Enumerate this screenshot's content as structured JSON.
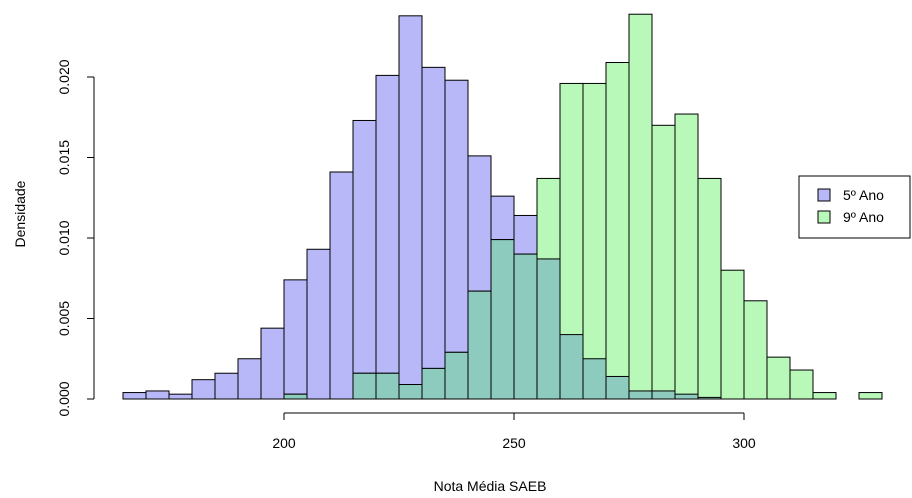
{
  "chart_data": {
    "type": "bar",
    "subtype": "overlaid-histogram",
    "xlabel": "Nota Média SAEB",
    "ylabel": "Densidade",
    "xlim": [
      163,
      332
    ],
    "ylim": [
      0,
      0.024
    ],
    "bin_width": 5,
    "x_ticks": [
      200,
      250,
      300
    ],
    "y_ticks": [
      0.0,
      0.005,
      0.01,
      0.015,
      0.02
    ],
    "y_tick_labels": [
      "0.000",
      "0.005",
      "0.010",
      "0.015",
      "0.020"
    ],
    "grid": false,
    "legend_position": "right",
    "series": [
      {
        "name": "5º Ano",
        "color": "#b8b8f8",
        "bins": [
          {
            "x0": 165,
            "x1": 170,
            "density": 0.0004
          },
          {
            "x0": 170,
            "x1": 175,
            "density": 0.0005
          },
          {
            "x0": 175,
            "x1": 180,
            "density": 0.0003
          },
          {
            "x0": 180,
            "x1": 185,
            "density": 0.0012
          },
          {
            "x0": 185,
            "x1": 190,
            "density": 0.0016
          },
          {
            "x0": 190,
            "x1": 195,
            "density": 0.0025
          },
          {
            "x0": 195,
            "x1": 200,
            "density": 0.0044
          },
          {
            "x0": 200,
            "x1": 205,
            "density": 0.0074
          },
          {
            "x0": 205,
            "x1": 210,
            "density": 0.0093
          },
          {
            "x0": 210,
            "x1": 215,
            "density": 0.0141
          },
          {
            "x0": 215,
            "x1": 220,
            "density": 0.0173
          },
          {
            "x0": 220,
            "x1": 225,
            "density": 0.0201
          },
          {
            "x0": 225,
            "x1": 230,
            "density": 0.0238
          },
          {
            "x0": 230,
            "x1": 235,
            "density": 0.0206
          },
          {
            "x0": 235,
            "x1": 240,
            "density": 0.0198
          },
          {
            "x0": 240,
            "x1": 245,
            "density": 0.0151
          },
          {
            "x0": 245,
            "x1": 250,
            "density": 0.0126
          },
          {
            "x0": 250,
            "x1": 255,
            "density": 0.0114
          },
          {
            "x0": 255,
            "x1": 260,
            "density": 0.0087
          },
          {
            "x0": 260,
            "x1": 265,
            "density": 0.004
          },
          {
            "x0": 265,
            "x1": 270,
            "density": 0.0025
          },
          {
            "x0": 270,
            "x1": 275,
            "density": 0.0014
          },
          {
            "x0": 275,
            "x1": 280,
            "density": 0.0005
          },
          {
            "x0": 280,
            "x1": 285,
            "density": 0.0005
          },
          {
            "x0": 285,
            "x1": 290,
            "density": 0.0003
          },
          {
            "x0": 290,
            "x1": 295,
            "density": 0.0001
          }
        ]
      },
      {
        "name": "9º Ano",
        "color": "#b8f8b8",
        "bins": [
          {
            "x0": 200,
            "x1": 205,
            "density": 0.0003
          },
          {
            "x0": 215,
            "x1": 220,
            "density": 0.0016
          },
          {
            "x0": 220,
            "x1": 225,
            "density": 0.0016
          },
          {
            "x0": 225,
            "x1": 230,
            "density": 0.0009
          },
          {
            "x0": 230,
            "x1": 235,
            "density": 0.0019
          },
          {
            "x0": 235,
            "x1": 240,
            "density": 0.0029
          },
          {
            "x0": 240,
            "x1": 245,
            "density": 0.0067
          },
          {
            "x0": 245,
            "x1": 250,
            "density": 0.0099
          },
          {
            "x0": 250,
            "x1": 255,
            "density": 0.009
          },
          {
            "x0": 255,
            "x1": 260,
            "density": 0.0137
          },
          {
            "x0": 260,
            "x1": 265,
            "density": 0.0196
          },
          {
            "x0": 265,
            "x1": 270,
            "density": 0.0196
          },
          {
            "x0": 270,
            "x1": 275,
            "density": 0.0209
          },
          {
            "x0": 275,
            "x1": 280,
            "density": 0.0239
          },
          {
            "x0": 280,
            "x1": 285,
            "density": 0.017
          },
          {
            "x0": 285,
            "x1": 290,
            "density": 0.0177
          },
          {
            "x0": 290,
            "x1": 295,
            "density": 0.0137
          },
          {
            "x0": 295,
            "x1": 300,
            "density": 0.008
          },
          {
            "x0": 300,
            "x1": 305,
            "density": 0.0061
          },
          {
            "x0": 305,
            "x1": 310,
            "density": 0.0026
          },
          {
            "x0": 310,
            "x1": 315,
            "density": 0.0018
          },
          {
            "x0": 315,
            "x1": 320,
            "density": 0.0004
          },
          {
            "x0": 325,
            "x1": 330,
            "density": 0.0004
          }
        ]
      }
    ]
  },
  "overlap_color": "#8ecbbf",
  "legend": {
    "items": [
      {
        "label": "5º Ano",
        "color": "#b8b8f8"
      },
      {
        "label": "9º Ano",
        "color": "#b8f8b8"
      }
    ]
  }
}
